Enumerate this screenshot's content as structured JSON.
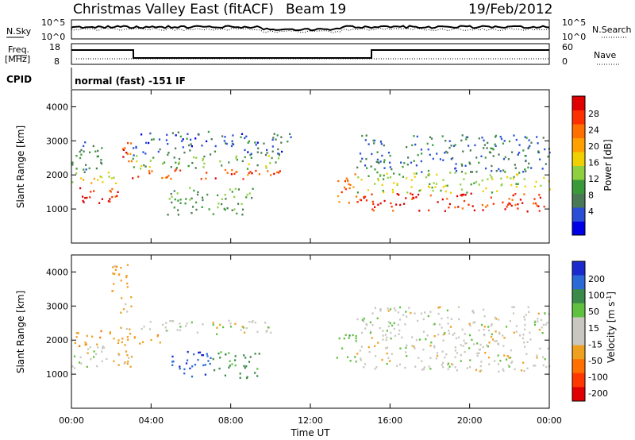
{
  "header": {
    "title": "Christmas Valley East (fitACF)",
    "beam": "Beam 19",
    "date": "19/Feb/2012"
  },
  "panels": {
    "noise": {
      "left_label": "N.Sky",
      "right_label": "N.Search",
      "left_ticks": [
        "10^5",
        "10^0"
      ],
      "right_ticks": [
        "10^5",
        "10^0"
      ]
    },
    "freq": {
      "left_label_1": "Freq.",
      "left_label_2": "[MHz]",
      "right_label": "Nave",
      "left_ticks": [
        "18",
        "8"
      ],
      "right_ticks": [
        "60",
        "0"
      ]
    },
    "cpid": {
      "label": "CPID",
      "text": "normal (fast) -151 IF"
    }
  },
  "colorbars": {
    "power": {
      "label": "Power [dB]",
      "ticks": [
        "28",
        "24",
        "20",
        "16",
        "12",
        "8",
        "4"
      ],
      "colors": [
        "#0000e6",
        "#2a4fd6",
        "#4a7a55",
        "#3a9a3a",
        "#8fd040",
        "#f0d000",
        "#ffa000",
        "#ff7000",
        "#ff3000",
        "#e00000"
      ]
    },
    "velocity": {
      "label": "Velocity [m s",
      "label_sup": "-1",
      "label_end": "]",
      "ticks": [
        "200",
        "100",
        "50",
        "15",
        "-15",
        "-50",
        "-100",
        "-200"
      ],
      "colors": [
        "#1a2acc",
        "#2a6ad6",
        "#3a8a4a",
        "#60c040",
        "#c8c8c0",
        "#c8c8c0",
        "#f0a020",
        "#ff7000",
        "#ff3800",
        "#e00000"
      ]
    }
  },
  "chart_data": [
    {
      "type": "heatmap",
      "name_hint": "power",
      "ylabel": "Slant Range [km]",
      "yticks": [
        1000,
        2000,
        3000,
        4000
      ],
      "ylim": [
        0,
        4500
      ],
      "xlim_hours": [
        0,
        24
      ],
      "regions": [
        {
          "t0": 0.0,
          "t1": 2.3,
          "r0": 1150,
          "r1": 1700,
          "level": 27
        },
        {
          "t0": 0.0,
          "t1": 2.3,
          "r0": 1700,
          "r1": 2100,
          "level": 16
        },
        {
          "t0": 0.0,
          "t1": 1.8,
          "r0": 2100,
          "r1": 3000,
          "level": 8
        },
        {
          "t0": 2.3,
          "t1": 3.0,
          "r0": 2400,
          "r1": 3300,
          "level": 24
        },
        {
          "t0": 3.0,
          "t1": 10.5,
          "r0": 1900,
          "r1": 2200,
          "level": 24
        },
        {
          "t0": 3.0,
          "t1": 10.5,
          "r0": 2200,
          "r1": 2600,
          "level": 12
        },
        {
          "t0": 3.0,
          "t1": 11.0,
          "r0": 2600,
          "r1": 3300,
          "level": 6
        },
        {
          "t0": 4.8,
          "t1": 9.2,
          "r0": 850,
          "r1": 1650,
          "level": 10
        },
        {
          "t0": 13.3,
          "t1": 14.3,
          "r0": 1200,
          "r1": 2200,
          "level": 22
        },
        {
          "t0": 14.3,
          "t1": 24.0,
          "r0": 950,
          "r1": 1500,
          "level": 27
        },
        {
          "t0": 14.3,
          "t1": 24.0,
          "r0": 1500,
          "r1": 2100,
          "level": 14
        },
        {
          "t0": 14.3,
          "t1": 24.0,
          "r0": 2100,
          "r1": 3200,
          "level": 7
        }
      ]
    },
    {
      "type": "heatmap",
      "name_hint": "velocity",
      "ylabel": "Slant Range [km]",
      "xlabel": "Time UT",
      "yticks": [
        1000,
        2000,
        3000,
        4000
      ],
      "ylim": [
        0,
        4500
      ],
      "xlim_hours": [
        0,
        24
      ],
      "xticks": [
        "00:00",
        "04:00",
        "08:00",
        "12:00",
        "16:00",
        "20:00",
        "00:00"
      ],
      "regions": [
        {
          "t0": 0.0,
          "t1": 2.0,
          "r0": 1200,
          "r1": 1850,
          "value": 0
        },
        {
          "t0": 0.0,
          "t1": 2.0,
          "r0": 1850,
          "r1": 2300,
          "value": -40
        },
        {
          "t0": 2.0,
          "t1": 3.0,
          "r0": 1200,
          "r1": 4300,
          "value": -30
        },
        {
          "t0": 3.0,
          "t1": 10.0,
          "r0": 2200,
          "r1": 2600,
          "value": 0
        },
        {
          "t0": 3.0,
          "t1": 4.5,
          "r0": 1900,
          "r1": 2200,
          "value": -40
        },
        {
          "t0": 4.8,
          "t1": 7.0,
          "r0": 900,
          "r1": 1700,
          "value": 200
        },
        {
          "t0": 7.0,
          "t1": 9.5,
          "r0": 900,
          "r1": 1700,
          "value": 60
        },
        {
          "t0": 13.3,
          "t1": 14.3,
          "r0": 1300,
          "r1": 2200,
          "value": 40
        },
        {
          "t0": 14.3,
          "t1": 24.0,
          "r0": 1100,
          "r1": 1900,
          "value": 0
        },
        {
          "t0": 14.3,
          "t1": 24.0,
          "r0": 1900,
          "r1": 3000,
          "value": 0
        }
      ]
    }
  ],
  "axes": {
    "range_ticks": [
      "1000",
      "2000",
      "3000",
      "4000"
    ],
    "range_label": "Slant Range [km]",
    "time_ticks": [
      "00:00",
      "04:00",
      "08:00",
      "12:00",
      "16:00",
      "20:00",
      "00:00"
    ],
    "time_label": "Time UT"
  }
}
